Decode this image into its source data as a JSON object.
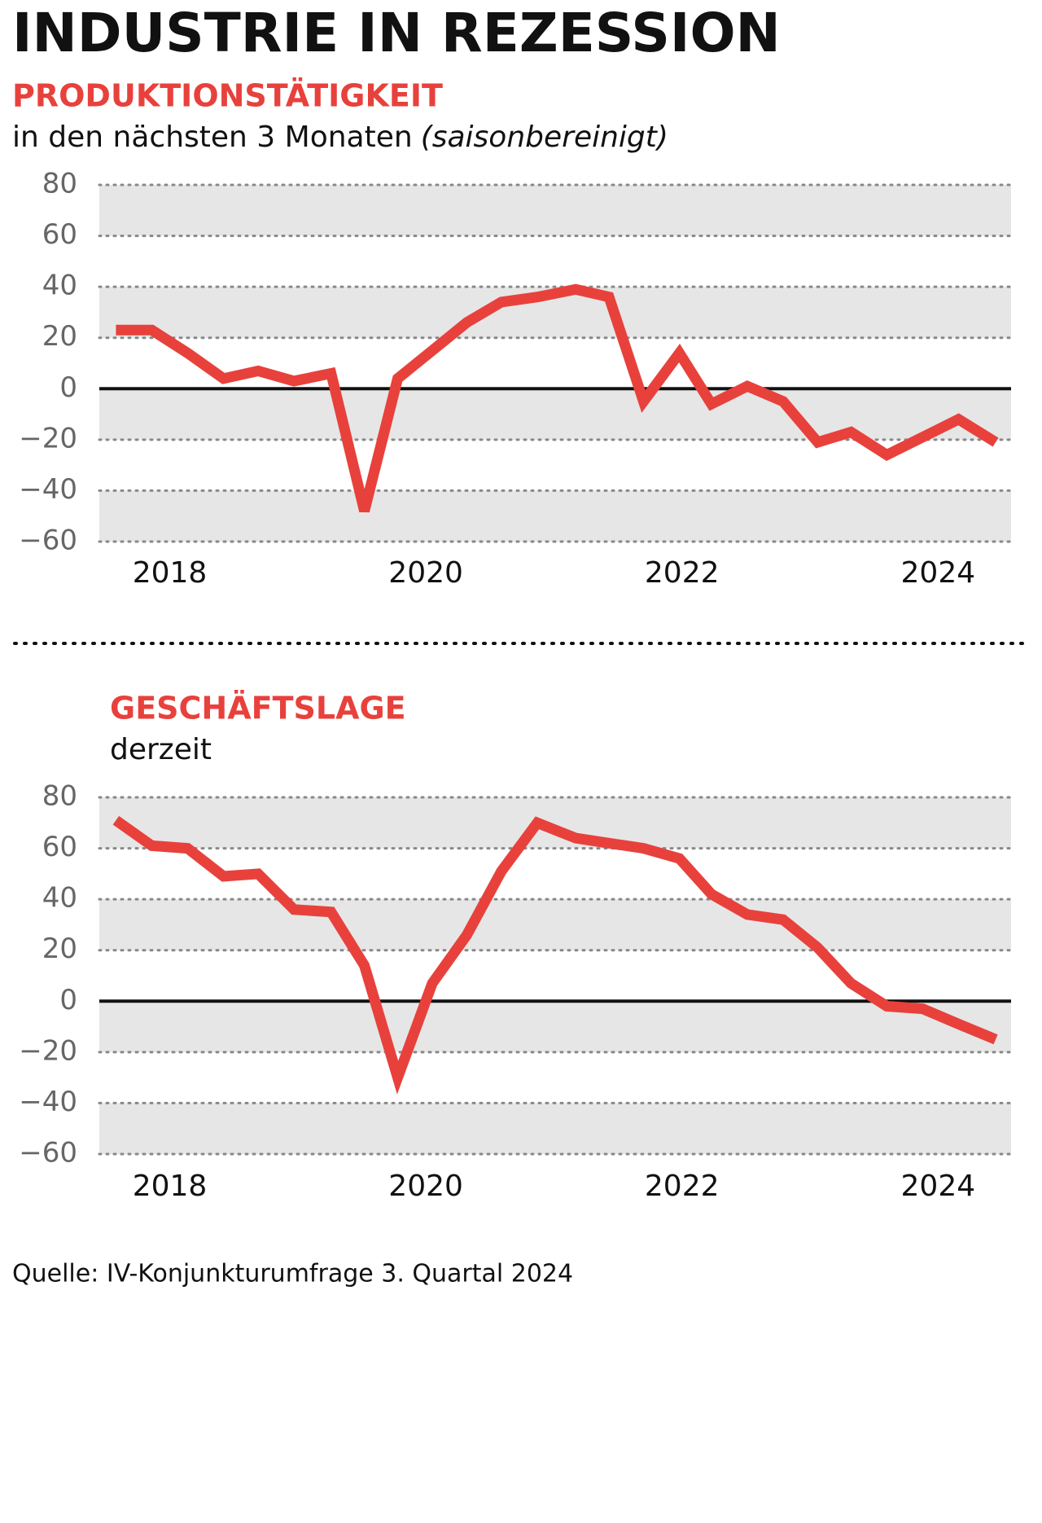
{
  "title": "INDUSTRIE IN REZESSION",
  "source": "Quelle: IV-Konjunkturumfrage 3. Quartal 2024",
  "chart_data": [
    {
      "type": "line",
      "title": "PRODUKTIONSTÄTIGKEIT",
      "subtitle": [
        "in den nächsten 3 Monaten",
        "(saisonbereinigt)"
      ],
      "color": "#e8413c",
      "x": [
        2017.58,
        2017.86,
        2018.14,
        2018.42,
        2018.69,
        2018.97,
        2019.26,
        2019.52,
        2019.78,
        2020.05,
        2020.32,
        2020.59,
        2020.87,
        2021.17,
        2021.43,
        2021.7,
        2021.98,
        2022.23,
        2022.51,
        2022.79,
        2023.06,
        2023.32,
        2023.6,
        2023.88,
        2024.16,
        2024.45
      ],
      "values": [
        23,
        23,
        14,
        4,
        7,
        3,
        6,
        -48,
        4,
        15,
        26,
        34,
        36,
        39,
        36,
        -5,
        14,
        -6,
        1,
        -5,
        -21,
        -17,
        -26,
        -19,
        -12,
        -21
      ],
      "xlim": [
        2017.45,
        2024.57
      ],
      "xticks": [
        2018,
        2020,
        2022,
        2024
      ],
      "ylim": [
        -60,
        80
      ],
      "yticks": [
        {
          "value": -60,
          "label": "−60"
        },
        {
          "value": -40,
          "label": "−40"
        },
        {
          "value": -20,
          "label": "−20"
        },
        0,
        20,
        40,
        60,
        80
      ]
    },
    {
      "type": "line",
      "title": "GESCHÄFTSLAGE",
      "subtitle": [
        "derzeit"
      ],
      "color": "#e8413c",
      "x": [
        2017.58,
        2017.86,
        2018.14,
        2018.42,
        2018.69,
        2018.97,
        2019.26,
        2019.52,
        2019.78,
        2020.05,
        2020.32,
        2020.59,
        2020.87,
        2021.17,
        2021.43,
        2021.7,
        2021.98,
        2022.23,
        2022.51,
        2022.79,
        2023.06,
        2023.32,
        2023.6,
        2023.88,
        2024.16,
        2024.45
      ],
      "values": [
        71,
        61,
        60,
        49,
        50,
        36,
        35,
        14,
        -30,
        7,
        26,
        51,
        70,
        64,
        62,
        60,
        56,
        42,
        34,
        32,
        21,
        7,
        -2,
        -3,
        -9,
        -15
      ],
      "xlim": [
        2017.45,
        2024.57
      ],
      "xticks": [
        2018,
        2020,
        2022,
        2024
      ],
      "ylim": [
        -60,
        80
      ],
      "yticks": [
        {
          "value": -60,
          "label": "−60"
        },
        {
          "value": -40,
          "label": "−40"
        },
        {
          "value": -20,
          "label": "−20"
        },
        0,
        20,
        40,
        60,
        80
      ]
    }
  ]
}
